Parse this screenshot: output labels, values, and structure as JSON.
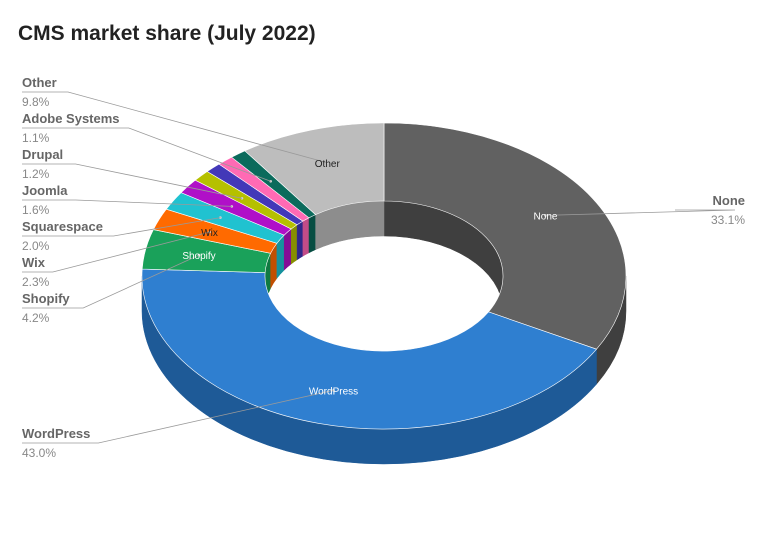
{
  "chart_data": {
    "type": "pie",
    "title": "CMS market share (July 2022)",
    "variant": "3d-donut",
    "slices": [
      {
        "label": "None",
        "value": 33.1,
        "pct": "33.1%",
        "color": "#616161",
        "side": "#3f3f3f",
        "inner_label": "None",
        "inner_color": "#ffffff"
      },
      {
        "label": "WordPress",
        "value": 43.0,
        "pct": "43.0%",
        "color": "#2f7fd0",
        "side": "#1e5a97",
        "inner_label": "WordPress",
        "inner_color": "#ffffff"
      },
      {
        "label": "Shopify",
        "value": 4.2,
        "pct": "4.2%",
        "color": "#1aa15a",
        "side": "#0f7a42",
        "inner_label": "Shopify",
        "inner_color": "#ffffff"
      },
      {
        "label": "Wix",
        "value": 2.3,
        "pct": "2.3%",
        "color": "#ff6a00",
        "side": "#c24f00",
        "inner_label": "Wix",
        "inner_color": "#222222"
      },
      {
        "label": "Squarespace",
        "value": 2.0,
        "pct": "2.0%",
        "color": "#20c2d0",
        "side": "#15929d",
        "inner_label": "",
        "inner_color": "#ffffff"
      },
      {
        "label": "Joomla",
        "value": 1.6,
        "pct": "1.6%",
        "color": "#b010c8",
        "side": "#840c96",
        "inner_label": "",
        "inner_color": "#ffffff"
      },
      {
        "label": "Drupal",
        "value": 1.2,
        "pct": "1.2%",
        "color": "#b5c000",
        "side": "#878f00",
        "inner_label": "",
        "inner_color": "#ffffff"
      },
      {
        "label": "",
        "value": 1.1,
        "pct": "",
        "color": "#4338b8",
        "side": "#30288a",
        "inner_label": "",
        "inner_color": "#ffffff"
      },
      {
        "label": "",
        "value": 1.1,
        "pct": "",
        "color": "#ff6ab4",
        "side": "#c24c88",
        "inner_label": "",
        "inner_color": "#ffffff"
      },
      {
        "label": "Adobe Systems",
        "value": 1.1,
        "pct": "1.1%",
        "color": "#0b6b5c",
        "side": "#074d42",
        "inner_label": "",
        "inner_color": "#ffffff"
      },
      {
        "label": "Other",
        "value": 9.8,
        "pct": "9.8%",
        "color": "#bdbdbd",
        "side": "#8d8d8d",
        "inner_label": "Other",
        "inner_color": "#222222"
      }
    ]
  }
}
